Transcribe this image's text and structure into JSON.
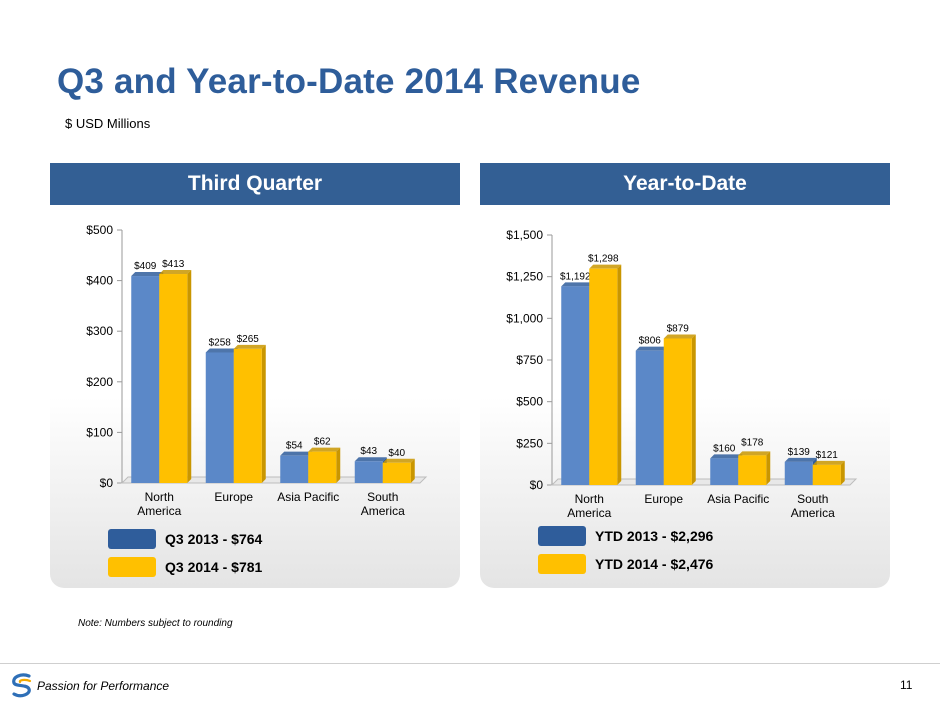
{
  "slide": {
    "title": "Q3 and Year-to-Date 2014 Revenue",
    "subtitle": "$ USD Millions",
    "note": "Note: Numbers subject to rounding",
    "tagline": "Passion for Performance",
    "page_number": "11"
  },
  "colors": {
    "title": "#2e5d9a",
    "header": "#335f94",
    "series_2013": "#5b88c8",
    "series_2014": "#ffc000"
  },
  "panels": {
    "quarter": {
      "header": "Third Quarter",
      "legend": [
        "Q3 2013 - $764",
        "Q3 2014 - $781"
      ]
    },
    "ytd": {
      "header": "Year-to-Date",
      "legend": [
        "YTD 2013 - $2,296",
        "YTD 2014 - $2,476"
      ]
    }
  },
  "chart_data": [
    {
      "type": "bar",
      "title": "Third Quarter",
      "categories": [
        "North America",
        "Europe",
        "Asia Pacific",
        "South America"
      ],
      "series": [
        {
          "name": "Q3 2013",
          "values": [
            409,
            258,
            54,
            43
          ],
          "labels": [
            "$409",
            "$258",
            "$54",
            "$43"
          ]
        },
        {
          "name": "Q3 2014",
          "values": [
            413,
            265,
            62,
            40
          ],
          "labels": [
            "$413",
            "$265",
            "$62",
            "$40"
          ]
        }
      ],
      "ylim": [
        0,
        500
      ],
      "yticks": [
        0,
        100,
        200,
        300,
        400,
        500
      ],
      "ytick_labels": [
        "$0",
        "$100",
        "$200",
        "$300",
        "$400",
        "$500"
      ]
    },
    {
      "type": "bar",
      "title": "Year-to-Date",
      "categories": [
        "North America",
        "Europe",
        "Asia Pacific",
        "South America"
      ],
      "series": [
        {
          "name": "YTD 2013",
          "values": [
            1192,
            806,
            160,
            139
          ],
          "labels": [
            "$1,192",
            "$806",
            "$160",
            "$139"
          ]
        },
        {
          "name": "YTD 2014",
          "values": [
            1298,
            879,
            178,
            121
          ],
          "labels": [
            "$1,298",
            "$879",
            "$178",
            "$121"
          ]
        }
      ],
      "ylim": [
        0,
        1500
      ],
      "yticks": [
        0,
        250,
        500,
        750,
        1000,
        1250,
        1500
      ],
      "ytick_labels": [
        "$0",
        "$250",
        "$500",
        "$750",
        "$1,000",
        "$1,250",
        "$1,500"
      ]
    }
  ]
}
